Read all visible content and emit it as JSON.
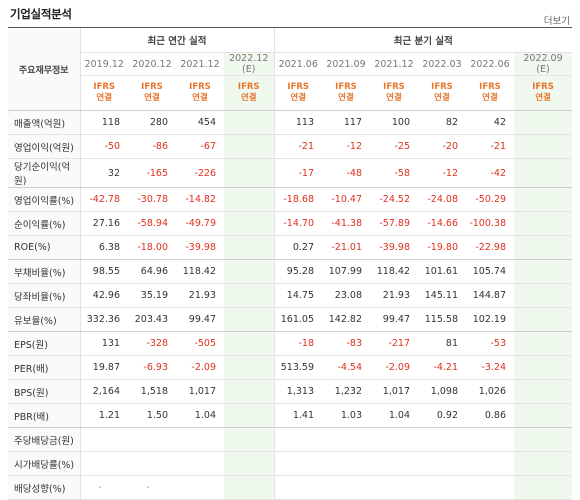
{
  "header": {
    "title": "기업실적분석",
    "more": "더보기"
  },
  "table": {
    "label_header": "주요재무정보",
    "group_annual": "최근 연간 실적",
    "group_quarter": "최근 분기 실적",
    "annual_periods": [
      "2019.12",
      "2020.12",
      "2021.12",
      "2022.12"
    ],
    "annual_est_mark": "(E)",
    "quarter_periods": [
      "2021.06",
      "2021.09",
      "2021.12",
      "2022.03",
      "2022.06",
      "2022.09"
    ],
    "quarter_est_mark": "(E)",
    "ifrs_line1": "IFRS",
    "ifrs_line2": "연결",
    "rows": [
      {
        "label": "매출액(억원)",
        "values": [
          "118",
          "280",
          "454",
          "",
          "113",
          "117",
          "100",
          "82",
          "42",
          ""
        ]
      },
      {
        "label": "영업이익(억원)",
        "values": [
          "-50",
          "-86",
          "-67",
          "",
          "-21",
          "-12",
          "-25",
          "-20",
          "-21",
          ""
        ]
      },
      {
        "label": "당기순이익(억원)",
        "values": [
          "32",
          "-165",
          "-226",
          "",
          "-17",
          "-48",
          "-58",
          "-12",
          "-42",
          ""
        ]
      },
      {
        "label": "영업이익률(%)",
        "values": [
          "-42.78",
          "-30.78",
          "-14.82",
          "",
          "-18.68",
          "-10.47",
          "-24.52",
          "-24.08",
          "-50.29",
          ""
        ]
      },
      {
        "label": "순이익률(%)",
        "values": [
          "27.16",
          "-58.94",
          "-49.79",
          "",
          "-14.70",
          "-41.38",
          "-57.89",
          "-14.66",
          "-100.38",
          ""
        ]
      },
      {
        "label": "ROE(%)",
        "values": [
          "6.38",
          "-18.00",
          "-39.98",
          "",
          "0.27",
          "-21.01",
          "-39.98",
          "-19.80",
          "-22.98",
          ""
        ]
      },
      {
        "label": "부채비율(%)",
        "values": [
          "98.55",
          "64.96",
          "118.42",
          "",
          "95.28",
          "107.99",
          "118.42",
          "101.61",
          "105.74",
          ""
        ]
      },
      {
        "label": "당좌비율(%)",
        "values": [
          "42.96",
          "35.19",
          "21.93",
          "",
          "14.75",
          "23.08",
          "21.93",
          "145.11",
          "144.87",
          ""
        ]
      },
      {
        "label": "유보율(%)",
        "values": [
          "332.36",
          "203.43",
          "99.47",
          "",
          "161.05",
          "142.82",
          "99.47",
          "115.58",
          "102.19",
          ""
        ]
      },
      {
        "label": "EPS(원)",
        "values": [
          "131",
          "-328",
          "-505",
          "",
          "-18",
          "-83",
          "-217",
          "81",
          "-53",
          ""
        ]
      },
      {
        "label": "PER(배)",
        "values": [
          "19.87",
          "-6.93",
          "-2.09",
          "",
          "513.59",
          "-4.54",
          "-2.09",
          "-4.21",
          "-3.24",
          ""
        ]
      },
      {
        "label": "BPS(원)",
        "values": [
          "2,164",
          "1,518",
          "1,017",
          "",
          "1,313",
          "1,232",
          "1,017",
          "1,098",
          "1,026",
          ""
        ]
      },
      {
        "label": "PBR(배)",
        "values": [
          "1.21",
          "1.50",
          "1.04",
          "",
          "1.41",
          "1.03",
          "1.04",
          "0.92",
          "0.86",
          ""
        ]
      },
      {
        "label": "주당배당금(원)",
        "values": [
          "",
          "",
          "",
          "",
          "",
          "",
          "",
          "",
          "",
          ""
        ]
      },
      {
        "label": "시가배당률(%)",
        "values": [
          "",
          "",
          "",
          "",
          "",
          "",
          "",
          "",
          "",
          ""
        ]
      },
      {
        "label": "배당성향(%)",
        "values": [
          "-",
          "-",
          "",
          "",
          "",
          "",
          "",
          "",
          "",
          ""
        ]
      }
    ]
  },
  "colors": {
    "negative": "#e0301e",
    "ifrs": "#e8752d",
    "estimate_bg": "#f0f9ee"
  }
}
